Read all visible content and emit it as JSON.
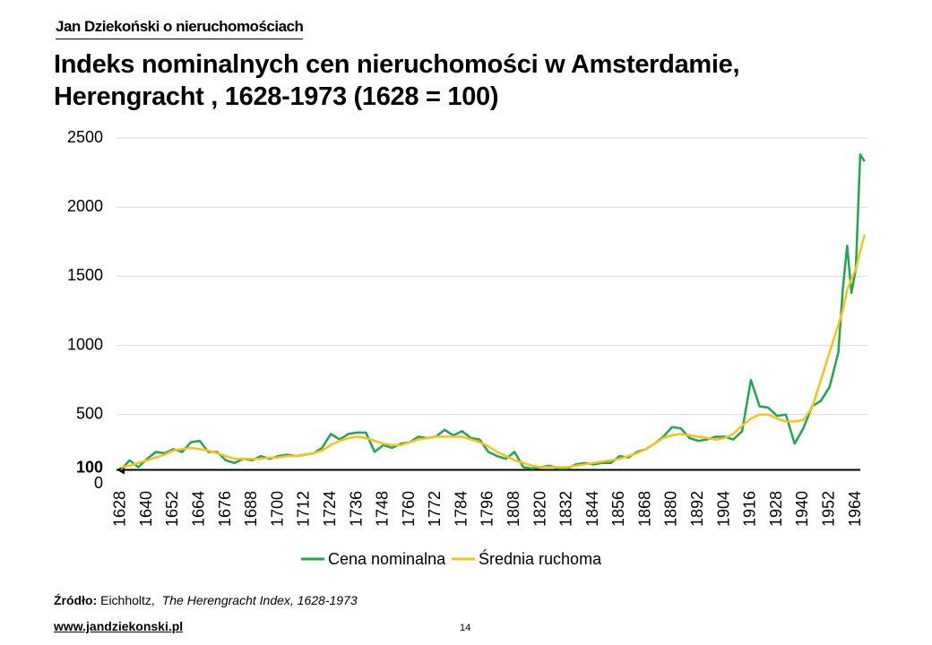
{
  "header": "Jan Dziekoński o nieruchomościach",
  "chart_data": {
    "type": "line",
    "title": "Indeks nominalnych cen nieruchomości w Amsterdamie, Herengracht , 1628-1973 (1628 = 100)",
    "x": [
      1628,
      1632,
      1636,
      1640,
      1644,
      1648,
      1652,
      1656,
      1660,
      1664,
      1668,
      1672,
      1676,
      1680,
      1684,
      1688,
      1692,
      1696,
      1700,
      1704,
      1708,
      1712,
      1716,
      1720,
      1724,
      1728,
      1732,
      1736,
      1740,
      1744,
      1748,
      1752,
      1756,
      1760,
      1764,
      1768,
      1772,
      1776,
      1780,
      1784,
      1788,
      1792,
      1796,
      1800,
      1804,
      1808,
      1812,
      1816,
      1820,
      1824,
      1828,
      1832,
      1836,
      1840,
      1844,
      1848,
      1852,
      1856,
      1860,
      1864,
      1868,
      1872,
      1876,
      1880,
      1884,
      1888,
      1892,
      1896,
      1900,
      1904,
      1908,
      1912,
      1916,
      1920,
      1924,
      1928,
      1932,
      1936,
      1940,
      1944,
      1948,
      1952,
      1956,
      1958,
      1960,
      1962,
      1964,
      1966,
      1968
    ],
    "series": [
      {
        "name": "Cena nominalna",
        "color": "#1fa64f",
        "values": [
          100,
          170,
          120,
          180,
          230,
          220,
          250,
          230,
          300,
          310,
          230,
          230,
          170,
          150,
          180,
          170,
          200,
          180,
          200,
          210,
          200,
          210,
          220,
          260,
          360,
          320,
          360,
          370,
          370,
          230,
          280,
          260,
          290,
          300,
          340,
          330,
          340,
          390,
          350,
          380,
          330,
          320,
          230,
          200,
          180,
          230,
          120,
          110,
          120,
          130,
          110,
          110,
          140,
          150,
          140,
          150,
          150,
          200,
          190,
          230,
          250,
          290,
          340,
          410,
          400,
          330,
          310,
          320,
          340,
          340,
          320,
          380,
          750,
          560,
          550,
          490,
          500,
          290,
          400,
          560,
          600,
          700,
          950,
          1400,
          1720,
          1380,
          1550,
          2380,
          2330
        ]
      },
      {
        "name": "Średnia ruchoma",
        "color": "#f5c319",
        "values": [
          120,
          130,
          150,
          170,
          190,
          210,
          240,
          250,
          260,
          250,
          240,
          220,
          200,
          180,
          180,
          180,
          180,
          190,
          190,
          200,
          200,
          210,
          220,
          240,
          280,
          310,
          330,
          340,
          330,
          310,
          290,
          280,
          280,
          300,
          320,
          330,
          340,
          340,
          340,
          340,
          320,
          300,
          270,
          230,
          200,
          170,
          150,
          130,
          120,
          120,
          120,
          120,
          130,
          140,
          150,
          160,
          170,
          180,
          200,
          220,
          250,
          290,
          330,
          350,
          360,
          350,
          340,
          330,
          320,
          330,
          360,
          420,
          470,
          500,
          500,
          470,
          450,
          450,
          460,
          550,
          750,
          950,
          1150,
          1250,
          1400,
          1480,
          1550,
          1680,
          1800
        ]
      }
    ],
    "xlim": [
      1626,
      1973
    ],
    "xticks": [
      1628,
      1640,
      1652,
      1664,
      1676,
      1688,
      1700,
      1712,
      1724,
      1736,
      1748,
      1760,
      1772,
      1784,
      1796,
      1808,
      1820,
      1832,
      1844,
      1856,
      1868,
      1880,
      1892,
      1904,
      1916,
      1928,
      1940,
      1952,
      1964
    ],
    "ylim": [
      0,
      2500
    ],
    "yticks": [
      0,
      500,
      1000,
      1500,
      2000,
      2500
    ],
    "reference_line": 100,
    "grid": true,
    "legend": "bottom"
  },
  "source": {
    "label": "Źródło:",
    "author": "Eichholtz,",
    "work": "The Herengracht Index, 1628-1973"
  },
  "footer": {
    "website": "www.jandziekonski.pl",
    "page": "14"
  }
}
